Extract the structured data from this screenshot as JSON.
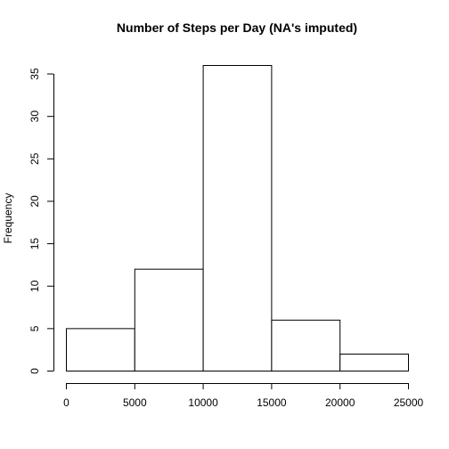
{
  "chart_data": {
    "type": "histogram",
    "title": "Number of Steps per Day (NA's imputed)",
    "xlabel": "",
    "ylabel": "Frequency",
    "bins": [
      {
        "from": 0,
        "to": 5000,
        "count": 5
      },
      {
        "from": 5000,
        "to": 10000,
        "count": 12
      },
      {
        "from": 10000,
        "to": 15000,
        "count": 36
      },
      {
        "from": 15000,
        "to": 20000,
        "count": 6
      },
      {
        "from": 20000,
        "to": 25000,
        "count": 2
      }
    ],
    "xlim": [
      0,
      25000
    ],
    "ylim": [
      0,
      36
    ],
    "xticks": [
      0,
      5000,
      10000,
      15000,
      20000,
      25000
    ],
    "yticks": [
      0,
      5,
      10,
      15,
      20,
      25,
      30,
      35
    ],
    "grid": false,
    "bar_fill": "#ffffff",
    "bar_stroke": "#000000"
  }
}
